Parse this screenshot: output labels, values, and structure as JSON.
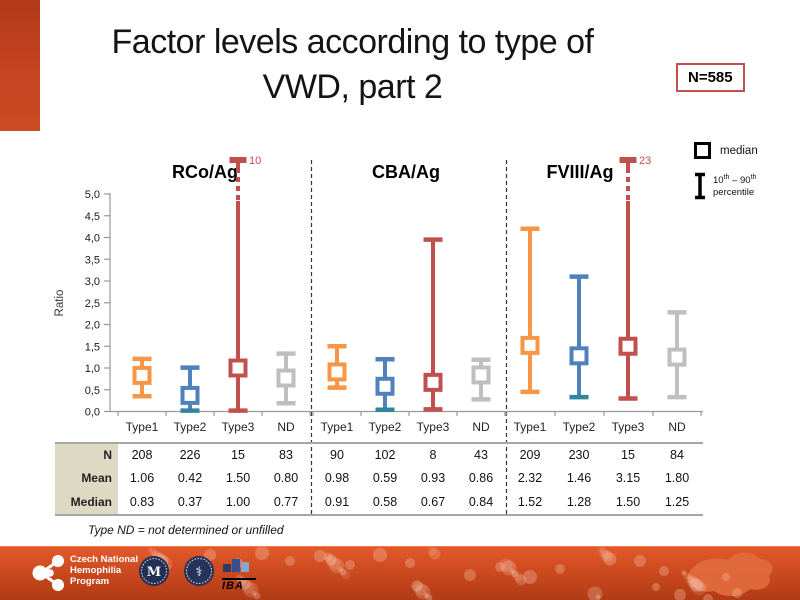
{
  "slide": {
    "title_line1": "Factor levels according to type of",
    "title_line2": "VWD, part 2",
    "n_badge": "N=585",
    "footnote": "Type ND = not determined or unfilled",
    "accent_color": "#C6431F"
  },
  "legend": {
    "median_label": "median",
    "p_low": "10",
    "p_high": "90",
    "sup": "th",
    "joiner": "–",
    "percentile_word": "percentile"
  },
  "chart_data": {
    "type": "box-whisker (median with 10th-90th percentile whiskers)",
    "ylabel": "Ratio",
    "ylim": [
      0,
      5
    ],
    "ytick_labels": [
      "0,0",
      "0,5",
      "1,0",
      "1,5",
      "2,0",
      "2,5",
      "3,0",
      "3,5",
      "4,0",
      "4,5",
      "5,0"
    ],
    "grid": false,
    "colors": {
      "Type1": "#F79646",
      "Type2": "#4F81BD",
      "Type3": "#C0504D",
      "ND": "#BFBFBF",
      "type2_low_cap": "#31859C",
      "clip_label": "#C0504D",
      "axis": "#999999"
    },
    "groups": [
      {
        "label": "RCo/Ag",
        "categories": [
          "Type1",
          "Type2",
          "Type3",
          "ND"
        ],
        "points": [
          {
            "category": "Type1",
            "p10": 0.35,
            "median": 0.83,
            "p90": 1.21,
            "color": "#F79646"
          },
          {
            "category": "Type2",
            "p10": 0.02,
            "median": 0.37,
            "p90": 1.01,
            "color": "#4F81BD",
            "low_cap_color": "#31859C"
          },
          {
            "category": "Type3",
            "p10": 0.02,
            "median": 1.0,
            "p90": 10,
            "clipped": true,
            "clip_label": "10",
            "color": "#C0504D"
          },
          {
            "category": "ND",
            "p10": 0.19,
            "median": 0.77,
            "p90": 1.33,
            "color": "#BFBFBF"
          }
        ],
        "table": {
          "N": [
            "208",
            "226",
            "15",
            "83"
          ],
          "Mean": [
            "1.06",
            "0.42",
            "1.50",
            "0.80"
          ],
          "Median": [
            "0.83",
            "0.37",
            "1.00",
            "0.77"
          ]
        }
      },
      {
        "label": "CBA/Ag",
        "categories": [
          "Type1",
          "Type2",
          "Type3",
          "ND"
        ],
        "points": [
          {
            "category": "Type1",
            "p10": 0.55,
            "median": 0.91,
            "p90": 1.5,
            "color": "#F79646"
          },
          {
            "category": "Type2",
            "p10": 0.04,
            "median": 0.58,
            "p90": 1.2,
            "color": "#4F81BD",
            "low_cap_color": "#31859C"
          },
          {
            "category": "Type3",
            "p10": 0.05,
            "median": 0.67,
            "p90": 3.95,
            "color": "#C0504D"
          },
          {
            "category": "ND",
            "p10": 0.28,
            "median": 0.84,
            "p90": 1.19,
            "color": "#BFBFBF"
          }
        ],
        "table": {
          "N": [
            "90",
            "102",
            "8",
            "43"
          ],
          "Mean": [
            "0.98",
            "0.59",
            "0.93",
            "0.86"
          ],
          "Median": [
            "0.91",
            "0.58",
            "0.67",
            "0.84"
          ]
        }
      },
      {
        "label": "FVIII/Ag",
        "categories": [
          "Type1",
          "Type2",
          "Type3",
          "ND"
        ],
        "points": [
          {
            "category": "Type1",
            "p10": 0.45,
            "median": 1.52,
            "p90": 4.2,
            "color": "#F79646"
          },
          {
            "category": "Type2",
            "p10": 0.33,
            "median": 1.28,
            "p90": 3.1,
            "color": "#4F81BD",
            "low_cap_color": "#31859C"
          },
          {
            "category": "Type3",
            "p10": 0.3,
            "median": 1.5,
            "p90": 23,
            "clipped": true,
            "clip_label": "23",
            "color": "#C0504D"
          },
          {
            "category": "ND",
            "p10": 0.33,
            "median": 1.25,
            "p90": 2.28,
            "color": "#BFBFBF"
          }
        ],
        "table": {
          "N": [
            "209",
            "230",
            "15",
            "84"
          ],
          "Mean": [
            "2.32",
            "1.46",
            "3.15",
            "1.80"
          ],
          "Median": [
            "1.52",
            "1.28",
            "1.50",
            "1.25"
          ]
        }
      }
    ]
  },
  "table": {
    "row_headers": [
      "N",
      "Mean",
      "Median"
    ]
  },
  "footer": {
    "org_lines": [
      "Czech National",
      "Hemophilia",
      "Program"
    ],
    "iba_label": "IBA"
  }
}
